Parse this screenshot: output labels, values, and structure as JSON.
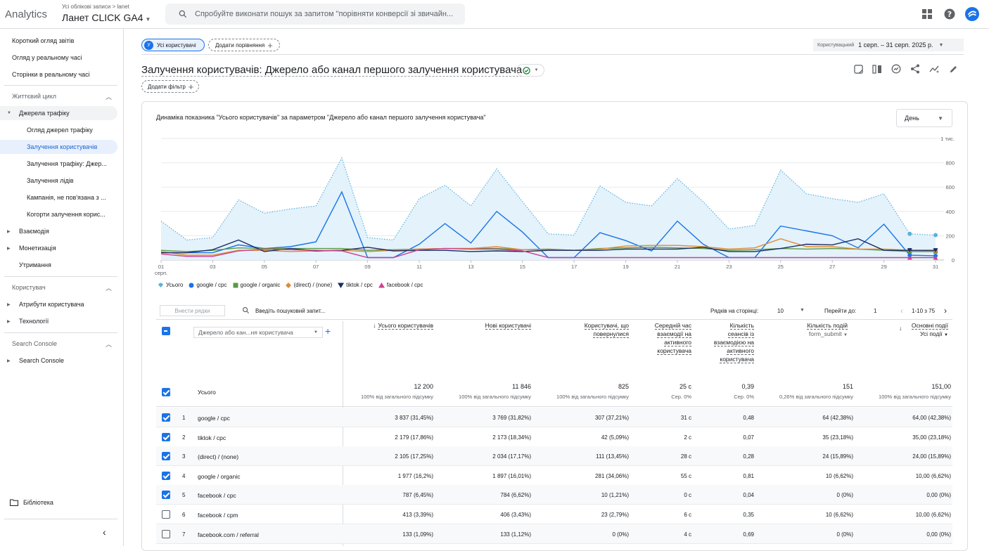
{
  "header": {
    "logo": "Analytics",
    "breadcrumb": "Усі облікові записи > lanet",
    "property": "Ланет CLICK GA4",
    "search_placeholder": "Спробуйте виконати пошук за запитом \"порівняти конверсії зі звичайн..."
  },
  "sidebar": {
    "items": [
      {
        "label": "Короткий огляд звітів"
      },
      {
        "label": "Огляд у реальному часі"
      },
      {
        "label": "Сторінки в реальному часі"
      }
    ],
    "lifecycle": "Життєвий цикл",
    "traffic": "Джерела трафіку",
    "traffic_items": [
      "Огляд джерел трафіку",
      "Залучення користувачів",
      "Залучення трафіку: Джер...",
      "Залучення лідів",
      "Кампанія, не пов'язана з ...",
      "Когорти залучення корис..."
    ],
    "engagement": "Взаємодія",
    "monetization": "Монетизація",
    "retention": "Утримання",
    "user_section": "Користувач",
    "user_attrs": "Атрибути користувача",
    "tech": "Технології",
    "sc_section": "Search Console",
    "sc_item": "Search Console",
    "library": "Бібліотека"
  },
  "toolbar": {
    "users_chip": "Усі користувачі",
    "users_chip_avatar": "У",
    "compare": "Додати порівняння",
    "date_label": "Користувацький",
    "date_range": "1 серп. – 31 серп. 2025 р.",
    "title": "Залучення користувачів: Джерело або канал першого залучення користувача",
    "filter": "Додати фільтр"
  },
  "chart_card": {
    "title": "Динаміка показника \"Усього користувачів\" за параметром \"Джерело або канал першого залучення користувача\"",
    "period": "День"
  },
  "chart_data": {
    "type": "line",
    "x_ticks": [
      "01",
      "03",
      "05",
      "07",
      "09",
      "11",
      "13",
      "15",
      "17",
      "19",
      "21",
      "23",
      "25",
      "27",
      "29",
      "31"
    ],
    "x_tick_sub": "серп.",
    "y_ticks": [
      "0",
      "200",
      "400",
      "600",
      "800",
      "1 тис."
    ],
    "ylim": [
      0,
      1000
    ],
    "legend_position": "bottom-left",
    "series": [
      {
        "name": "Усього",
        "color": "#5eb0d9",
        "values": [
          320,
          165,
          185,
          495,
          385,
          420,
          445,
          840,
          185,
          165,
          505,
          615,
          445,
          750,
          480,
          215,
          205,
          610,
          475,
          445,
          670,
          480,
          255,
          285,
          740,
          545,
          505,
          475,
          545,
          215,
          205
        ]
      },
      {
        "name": "google / cpc",
        "color": "#1a73e8",
        "values": [
          60,
          60,
          60,
          125,
          95,
          110,
          150,
          560,
          20,
          20,
          130,
          300,
          140,
          400,
          230,
          20,
          20,
          225,
          160,
          75,
          320,
          130,
          20,
          20,
          280,
          240,
          200,
          100,
          295,
          40,
          35
        ]
      },
      {
        "name": "google / organic",
        "color": "#5b9a42",
        "values": [
          80,
          70,
          80,
          100,
          95,
          95,
          95,
          95,
          80,
          85,
          90,
          95,
          95,
          95,
          85,
          90,
          80,
          95,
          100,
          105,
          100,
          95,
          80,
          85,
          95,
          90,
          95,
          90,
          80,
          70,
          70
        ]
      },
      {
        "name": "(direct) / (none)",
        "color": "#e08a30",
        "values": [
          70,
          40,
          40,
          80,
          80,
          70,
          75,
          80,
          70,
          80,
          90,
          95,
          95,
          110,
          85,
          85,
          80,
          90,
          115,
          120,
          120,
          110,
          90,
          100,
          175,
          110,
          110,
          90,
          90,
          80,
          75
        ]
      },
      {
        "name": "tiktok / cpc",
        "color": "#1c2b66",
        "values": [
          60,
          60,
          85,
          165,
          70,
          95,
          75,
          80,
          105,
          75,
          80,
          80,
          70,
          75,
          70,
          80,
          80,
          80,
          90,
          90,
          90,
          105,
          70,
          70,
          95,
          130,
          125,
          175,
          80,
          80,
          80
        ]
      },
      {
        "name": "facebook / cpc",
        "color": "#d23f8f",
        "values": [
          50,
          30,
          30,
          75,
          90,
          85,
          80,
          75,
          20,
          20,
          85,
          95,
          90,
          90,
          75,
          20,
          20,
          20,
          20,
          20,
          20,
          20,
          20,
          20,
          20,
          20,
          20,
          20,
          20,
          20,
          20
        ]
      }
    ]
  },
  "table": {
    "toolbar": {
      "insert_rows": "Внести рядки",
      "search_placeholder": "Введіть пошуковий запит...",
      "rows_per_page_label": "Рядків на сторінці:",
      "rows_per_page": "10",
      "goto_label": "Перейти до:",
      "goto_value": "1",
      "pagination": "1-10 з 75"
    },
    "dimension": "Джерело або кан...ня користувача",
    "total_label": "Усього",
    "columns": [
      {
        "label": "Усього користувачів",
        "total": "12 200",
        "sub": "100% від загального підсумку"
      },
      {
        "label": "Нові користувачі",
        "total": "11 846",
        "sub": "100% від загального підсумку"
      },
      {
        "label": "Користувачі, що повернулися",
        "total": "825",
        "sub": "100% від загального підсумку"
      },
      {
        "label": "Середній час взаємодії на активного користувача",
        "total": "25 с",
        "sub": "Сер. 0%"
      },
      {
        "label": "Кількість сеансів із взаємодією на активного користувача",
        "total": "0,39",
        "sub": "Сер. 0%"
      },
      {
        "label": "Кількість подій",
        "sublabel": "form_submit",
        "total": "151",
        "sub": "0,26% від загального підсумку"
      },
      {
        "label": "Основні події",
        "sublabel": "Усі події",
        "total": "151,00",
        "sub": "100% від загального підсумку"
      }
    ],
    "rows": [
      {
        "idx": "1",
        "name": "google / cpc",
        "checked": true,
        "cells": [
          "3 837 (31,45%)",
          "3 769 (31,82%)",
          "307 (37,21%)",
          "31 с",
          "0,48",
          "64 (42,38%)",
          "64,00 (42,38%)"
        ]
      },
      {
        "idx": "2",
        "name": "tiktok / cpc",
        "checked": true,
        "cells": [
          "2 179 (17,86%)",
          "2 173 (18,34%)",
          "42 (5,09%)",
          "2 с",
          "0,07",
          "35 (23,18%)",
          "35,00 (23,18%)"
        ]
      },
      {
        "idx": "3",
        "name": "(direct) / (none)",
        "checked": true,
        "cells": [
          "2 105 (17,25%)",
          "2 034 (17,17%)",
          "111 (13,45%)",
          "28 с",
          "0,28",
          "24 (15,89%)",
          "24,00 (15,89%)"
        ]
      },
      {
        "idx": "4",
        "name": "google / organic",
        "checked": true,
        "cells": [
          "1 977 (16,2%)",
          "1 897 (16,01%)",
          "281 (34,06%)",
          "55 с",
          "0,81",
          "10 (6,62%)",
          "10,00 (6,62%)"
        ]
      },
      {
        "idx": "5",
        "name": "facebook / cpc",
        "checked": true,
        "cells": [
          "787 (6,45%)",
          "784 (6,62%)",
          "10 (1,21%)",
          "0 с",
          "0,04",
          "0 (0%)",
          "0,00 (0%)"
        ]
      },
      {
        "idx": "6",
        "name": "facebook / cpm",
        "checked": false,
        "cells": [
          "413 (3,39%)",
          "406 (3,43%)",
          "23 (2,79%)",
          "6 с",
          "0,35",
          "10 (6,62%)",
          "10,00 (6,62%)"
        ]
      },
      {
        "idx": "7",
        "name": "facebook.com / referral",
        "checked": false,
        "cells": [
          "133 (1,09%)",
          "133 (1,12%)",
          "0 (0%)",
          "4 с",
          "0,69",
          "0 (0%)",
          "0,00 (0%)"
        ]
      }
    ]
  }
}
